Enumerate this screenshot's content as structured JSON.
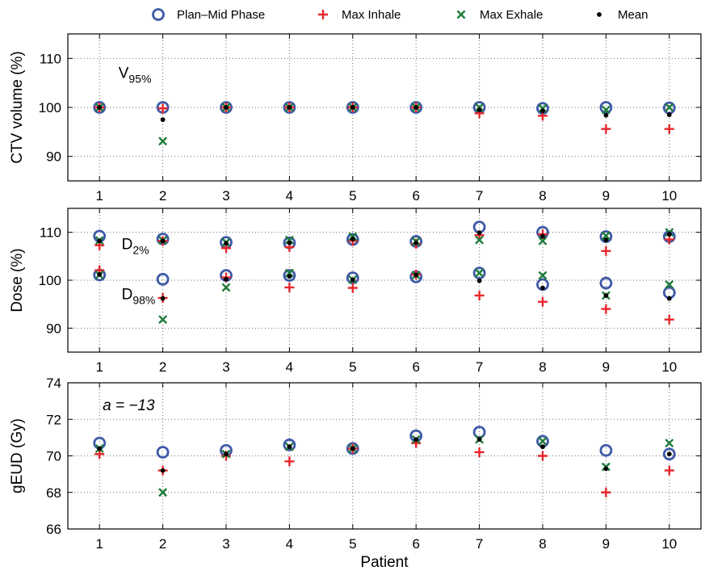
{
  "legend": {
    "items": [
      {
        "label": "Plan–Mid Phase",
        "marker": "circle",
        "color": "#3f5aa8"
      },
      {
        "label": "Max Inhale",
        "marker": "plus",
        "color": "#e8262b"
      },
      {
        "label": "Max Exhale",
        "marker": "cross",
        "color": "#1e7c3a"
      },
      {
        "label": "Mean",
        "marker": "dot",
        "color": "#000000"
      }
    ]
  },
  "chart_data": [
    {
      "type": "scatter",
      "ylabel": "CTV volume (%)",
      "xlabel": "",
      "x": [
        1,
        2,
        3,
        4,
        5,
        6,
        7,
        8,
        9,
        10
      ],
      "xticks": [
        "1",
        "2",
        "3",
        "4",
        "5",
        "6",
        "7",
        "8",
        "9",
        "10"
      ],
      "xlim": [
        0.5,
        10.5
      ],
      "ylim": [
        85,
        115
      ],
      "yticks": [
        90,
        100,
        110
      ],
      "grid": true,
      "annotations": [
        {
          "base": "V",
          "sub": "95%",
          "x": 1.3,
          "y": 106
        }
      ],
      "series": [
        {
          "name": "Plan–Mid Phase",
          "values": [
            100,
            100,
            100,
            100,
            100,
            100,
            100,
            99.8,
            100,
            99.9
          ]
        },
        {
          "name": "Max Inhale",
          "values": [
            100,
            99.8,
            100,
            100,
            100,
            100,
            98.8,
            98.3,
            95.6,
            95.6
          ]
        },
        {
          "name": "Max Exhale",
          "values": [
            100,
            93.1,
            100,
            100,
            100,
            100,
            100,
            99.8,
            99.5,
            100
          ]
        },
        {
          "name": "Mean",
          "values": [
            100,
            97.5,
            100,
            100,
            100,
            100,
            99.5,
            99.3,
            98.4,
            98.5
          ]
        }
      ]
    },
    {
      "type": "scatter",
      "ylabel": "Dose (%)",
      "xlabel": "",
      "x": [
        1,
        2,
        3,
        4,
        5,
        6,
        7,
        8,
        9,
        10
      ],
      "xticks": [
        "1",
        "2",
        "3",
        "4",
        "5",
        "6",
        "7",
        "8",
        "9",
        "10"
      ],
      "xlim": [
        0.5,
        10.5
      ],
      "ylim": [
        85,
        115
      ],
      "yticks": [
        90,
        100,
        110
      ],
      "grid": true,
      "annotations": [
        {
          "base": "D",
          "sub": "2%",
          "x": 1.35,
          "y": 106.5
        },
        {
          "base": "D",
          "sub": "98%",
          "x": 1.35,
          "y": 96
        }
      ],
      "series": [
        {
          "name": "Plan–Mid Phase",
          "values": [
            109.2,
            108.6,
            107.9,
            107.8,
            108.5,
            108.1,
            111.1,
            110,
            109.1,
            109.1
          ]
        },
        {
          "name": "Max Inhale",
          "values": [
            107.3,
            108.2,
            106.7,
            106.9,
            108.2,
            107.6,
            109.4,
            109.6,
            106.1,
            108.5
          ]
        },
        {
          "name": "Max Exhale",
          "values": [
            108.3,
            108.3,
            107.9,
            108.4,
            109.1,
            108.1,
            108.4,
            108.2,
            109.3,
            110
          ]
        },
        {
          "name": "Mean",
          "values": [
            108.2,
            108.2,
            107.7,
            107.8,
            108.6,
            107.8,
            109.9,
            109.2,
            108.4,
            109.6
          ]
        },
        {
          "name": "Plan–Mid Phase",
          "values": [
            101.1,
            100.2,
            101,
            101,
            100.5,
            100.7,
            101.5,
            99.1,
            99.4,
            97.4
          ]
        },
        {
          "name": "Max Inhale",
          "values": [
            102.1,
            96.3,
            100.6,
            98.5,
            98.4,
            101.2,
            96.8,
            95.5,
            94,
            91.8
          ]
        },
        {
          "name": "Max Exhale",
          "values": [
            101.1,
            91.8,
            98.5,
            101.5,
            100.1,
            101.1,
            101.5,
            101,
            96.8,
            99.1
          ]
        },
        {
          "name": "Mean",
          "values": [
            101.2,
            96.2,
            100.2,
            100.8,
            100.1,
            101.1,
            99.9,
            98.4,
            96.8,
            96.2
          ]
        }
      ]
    },
    {
      "type": "scatter",
      "ylabel": "gEUD (Gy)",
      "xlabel": "Patient",
      "x": [
        1,
        2,
        3,
        4,
        5,
        6,
        7,
        8,
        9,
        10
      ],
      "xticks": [
        "1",
        "2",
        "3",
        "4",
        "5",
        "6",
        "7",
        "8",
        "9",
        "10"
      ],
      "xlim": [
        0.5,
        10.5
      ],
      "ylim": [
        66,
        74
      ],
      "yticks": [
        66,
        68,
        70,
        72,
        74
      ],
      "grid": true,
      "annotations": [
        {
          "text": "a = −13",
          "x": 1.05,
          "y": 72.5
        }
      ],
      "series": [
        {
          "name": "Plan–Mid Phase",
          "values": [
            70.7,
            70.2,
            70.3,
            70.6,
            70.4,
            71.1,
            71.3,
            70.8,
            70.3,
            70.1
          ]
        },
        {
          "name": "Max Inhale",
          "values": [
            70.1,
            69.2,
            70,
            69.7,
            70.4,
            70.7,
            70.2,
            70,
            68,
            69.2
          ]
        },
        {
          "name": "Max Exhale",
          "values": [
            70.4,
            68,
            70.1,
            70.5,
            70.4,
            70.9,
            70.9,
            70.8,
            69.4,
            70.7
          ]
        },
        {
          "name": "Mean",
          "values": [
            70.4,
            69.2,
            70.1,
            70.5,
            70.4,
            70.9,
            70.9,
            70.5,
            69.3,
            70.1
          ]
        }
      ]
    }
  ]
}
